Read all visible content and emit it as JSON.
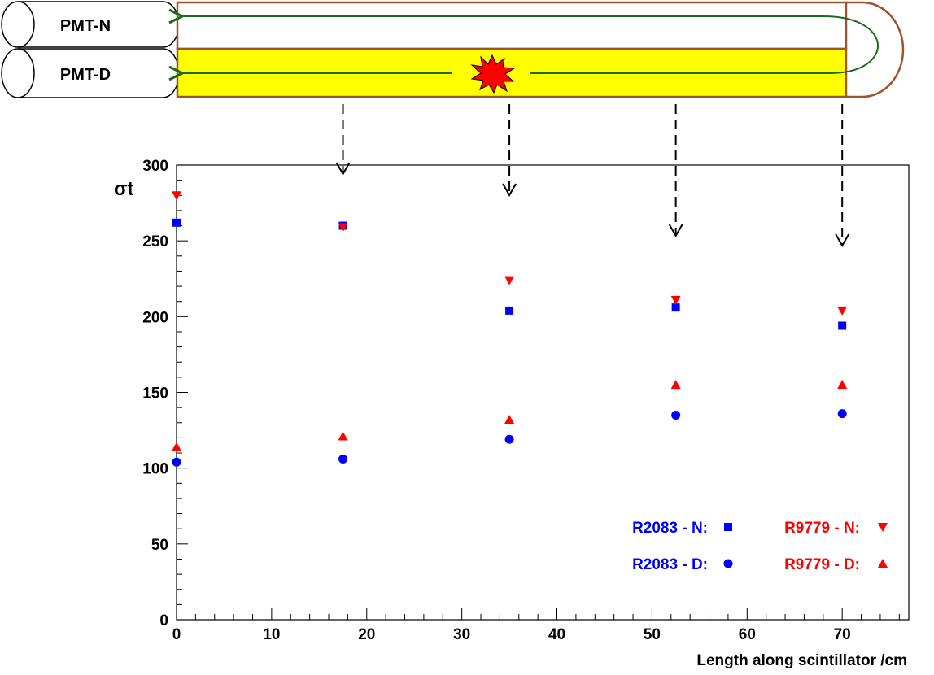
{
  "diagram": {
    "pmt_top_label": "PMT-N",
    "pmt_bottom_label": "PMT-D",
    "colors": {
      "bar_fill": "#ffff00",
      "bar_border": "#a0522d",
      "light_path": "#1a6b1a",
      "flash": "#ff0000"
    }
  },
  "chart_data": {
    "type": "scatter",
    "title": "",
    "xlabel": "Length along scintillator /cm",
    "ylabel": "σt",
    "xlim": [
      0,
      77
    ],
    "ylim": [
      0,
      300
    ],
    "x_ticks": [
      0,
      10,
      20,
      30,
      40,
      50,
      60,
      70
    ],
    "y_ticks": [
      0,
      50,
      100,
      150,
      200,
      250,
      300
    ],
    "grid": false,
    "legend_position": "bottom-right",
    "series": [
      {
        "name": "R2083 - N:",
        "marker": "square",
        "color": "#0000ff",
        "points": [
          [
            0,
            262
          ],
          [
            17.5,
            260
          ],
          [
            35,
            204
          ],
          [
            52.5,
            206
          ],
          [
            70,
            194
          ]
        ]
      },
      {
        "name": "R9779 - N:",
        "marker": "triangle-down",
        "color": "#ff0000",
        "points": [
          [
            0,
            280
          ],
          [
            17.5,
            259
          ],
          [
            35,
            224
          ],
          [
            52.5,
            211
          ],
          [
            70,
            204
          ]
        ]
      },
      {
        "name": "R2083 - D:",
        "marker": "circle",
        "color": "#0000ff",
        "points": [
          [
            0,
            104
          ],
          [
            17.5,
            106
          ],
          [
            35,
            119
          ],
          [
            52.5,
            135
          ],
          [
            70,
            136
          ]
        ]
      },
      {
        "name": "R9779 - D:",
        "marker": "triangle-up",
        "color": "#ff0000",
        "points": [
          [
            0,
            114
          ],
          [
            17.5,
            121
          ],
          [
            35,
            132
          ],
          [
            52.5,
            155
          ],
          [
            70,
            155
          ]
        ]
      }
    ],
    "arrow_positions": [
      17.5,
      35,
      52.5,
      70
    ]
  }
}
